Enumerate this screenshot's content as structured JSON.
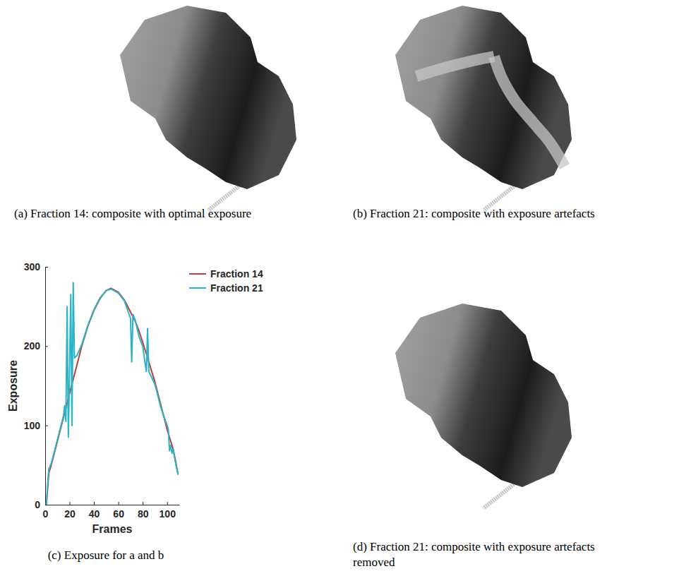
{
  "figure": {
    "panels": [
      {
        "caption": "(a) Fraction 14: composite with optimal exposure"
      },
      {
        "caption": "(b) Fraction 21: composite with exposure artefacts"
      },
      {
        "caption": "(d) Fraction 21: composite with exposure artefacts removed"
      }
    ]
  },
  "chart_data": {
    "type": "line",
    "caption": "(c) Exposure for a and b",
    "x_label": "Frames",
    "y_label": "Exposure",
    "xlim": [
      0,
      110
    ],
    "ylim": [
      0,
      300
    ],
    "xticks": [
      0,
      20,
      40,
      60,
      80,
      100
    ],
    "yticks": [
      0,
      100,
      200,
      300
    ],
    "legend": "right",
    "x": [
      1,
      2,
      3,
      5,
      10,
      15,
      16,
      17,
      18,
      19,
      20,
      21,
      22,
      23,
      24,
      26,
      30,
      35,
      40,
      45,
      50,
      54,
      60,
      65,
      70,
      71,
      72,
      74,
      77,
      80,
      82,
      83,
      84,
      85,
      90,
      95,
      100,
      101,
      102,
      103,
      104,
      105,
      107,
      109
    ],
    "series": [
      {
        "name": "Fraction 14",
        "color": "#b8413b",
        "values": [
          0,
          20,
          40,
          50,
          80,
          110,
          116,
          122,
          128,
          134,
          140,
          146,
          152,
          158,
          164,
          176,
          200,
          225,
          245,
          260,
          270,
          273,
          268,
          258,
          243,
          240,
          237,
          231,
          219,
          205,
          195,
          190,
          185,
          180,
          155,
          125,
          95,
          90,
          85,
          80,
          75,
          70,
          55,
          38
        ]
      },
      {
        "name": "Fraction 21",
        "color": "#2bb3c6",
        "values": [
          0,
          25,
          45,
          52,
          82,
          112,
          125,
          105,
          250,
          85,
          170,
          265,
          100,
          280,
          185,
          188,
          202,
          226,
          246,
          261,
          270,
          272,
          267,
          257,
          235,
          180,
          240,
          232,
          212,
          200,
          178,
          168,
          222,
          168,
          152,
          122,
          100,
          95,
          68,
          75,
          65,
          70,
          52,
          38
        ]
      }
    ]
  }
}
